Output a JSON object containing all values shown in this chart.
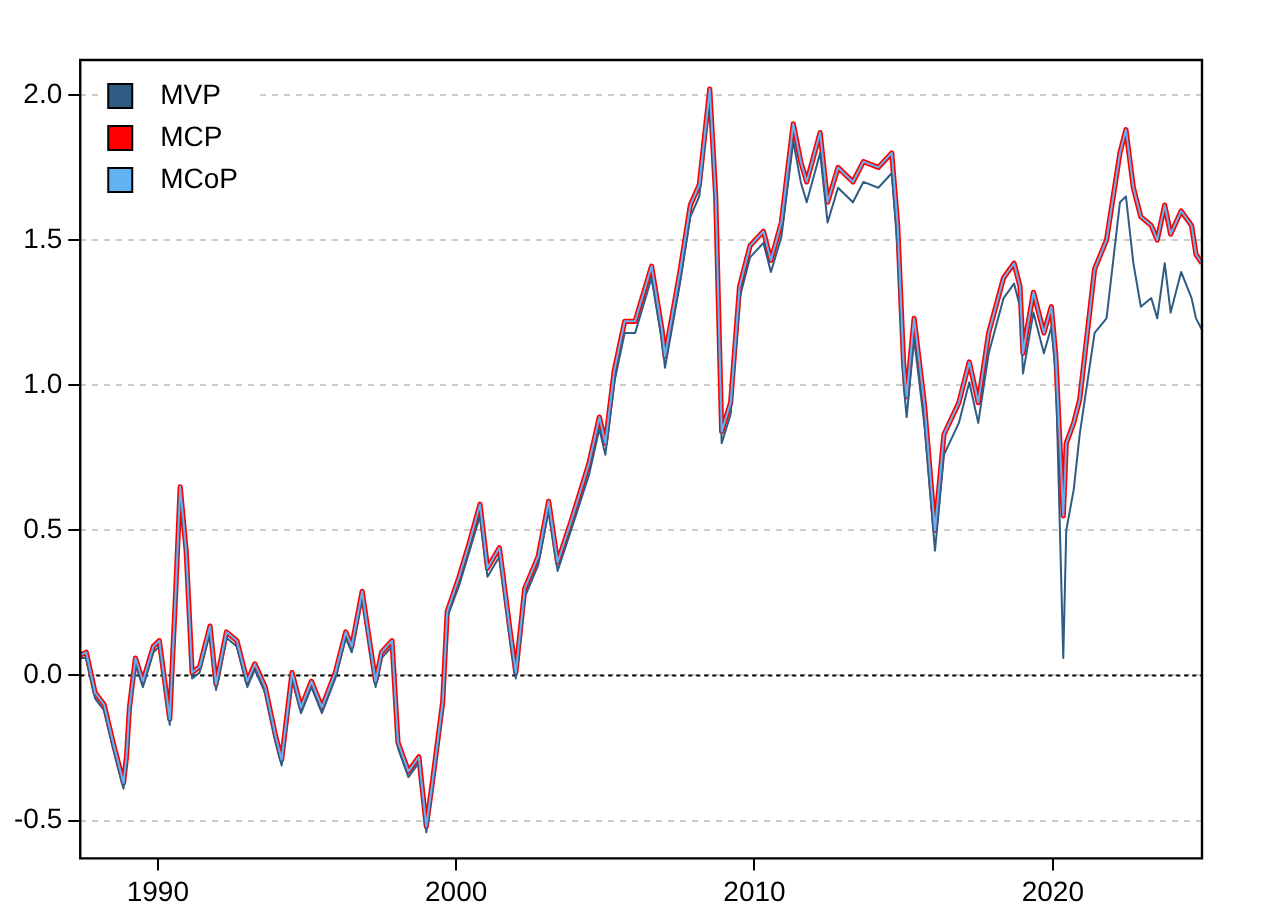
{
  "chart_data": {
    "type": "line",
    "xlim": [
      1987.4,
      2025
    ],
    "xticks": [
      1990,
      2000,
      2010,
      2020
    ],
    "ylim": [
      -0.63,
      2.12
    ],
    "yticks": [
      {
        "value": -0.5,
        "label": "-0.5"
      },
      {
        "value": 0,
        "label": "0.0"
      },
      {
        "value": 0.5,
        "label": "0.5"
      },
      {
        "value": 1,
        "label": "1.0"
      },
      {
        "value": 1.5,
        "label": "1.5"
      },
      {
        "value": 2,
        "label": "2.0"
      }
    ],
    "grid": "y",
    "legend": "top left",
    "marker": "none",
    "line_style": "solid",
    "ref_lines": [
      {
        "axis": "y",
        "value": 0,
        "color": "#000000",
        "line_style": "dotted"
      }
    ],
    "x": [
      1987.4,
      1987.6,
      1987.9,
      1988.2,
      1988.5,
      1988.85,
      1988.95,
      1989.05,
      1989.25,
      1989.5,
      1989.85,
      1990.05,
      1990.4,
      1990.6,
      1990.75,
      1990.95,
      1991.15,
      1991.4,
      1991.75,
      1991.95,
      1992.3,
      1992.65,
      1993.0,
      1993.25,
      1993.6,
      1993.95,
      1994.15,
      1994.5,
      1994.8,
      1995.15,
      1995.5,
      1995.95,
      1996.3,
      1996.5,
      1996.85,
      1997.05,
      1997.3,
      1997.5,
      1997.85,
      1998.05,
      1998.4,
      1998.75,
      1999.0,
      1999.2,
      1999.55,
      1999.7,
      2000.1,
      2000.45,
      2000.8,
      2001.05,
      2001.45,
      2001.8,
      2002.0,
      2002.3,
      2002.75,
      2003.1,
      2003.4,
      2003.85,
      2004.45,
      2004.8,
      2005.0,
      2005.3,
      2005.65,
      2006.0,
      2006.55,
      2006.9,
      2007.0,
      2007.5,
      2007.85,
      2008.15,
      2008.5,
      2008.7,
      2008.9,
      2009.2,
      2009.5,
      2009.85,
      2010.3,
      2010.55,
      2010.9,
      2011.3,
      2011.55,
      2011.75,
      2012.2,
      2012.45,
      2012.8,
      2013.3,
      2013.65,
      2014.15,
      2014.6,
      2014.8,
      2015.0,
      2015.1,
      2015.35,
      2015.7,
      2016.05,
      2016.35,
      2016.85,
      2017.2,
      2017.5,
      2017.85,
      2018.35,
      2018.7,
      2018.9,
      2019.0,
      2019.35,
      2019.7,
      2019.95,
      2020.1,
      2020.35,
      2020.45,
      2020.7,
      2020.9,
      2021.4,
      2021.8,
      2022.25,
      2022.45,
      2022.7,
      2022.95,
      2023.3,
      2023.5,
      2023.75,
      2023.95,
      2024.3,
      2024.65,
      2024.8,
      2025.0
    ],
    "series": [
      {
        "name": "MVP",
        "color": "#2f5c85",
        "values": [
          0.06,
          0.06,
          -0.08,
          -0.12,
          -0.25,
          -0.39,
          -0.3,
          -0.13,
          0.04,
          -0.04,
          0.08,
          0.1,
          -0.17,
          0.27,
          0.64,
          0.41,
          -0.01,
          0.01,
          0.15,
          -0.05,
          0.13,
          0.1,
          -0.04,
          0.02,
          -0.06,
          -0.23,
          -0.31,
          -0.01,
          -0.13,
          -0.04,
          -0.13,
          -0.01,
          0.13,
          0.08,
          0.27,
          0.13,
          -0.04,
          0.06,
          0.1,
          -0.25,
          -0.35,
          -0.3,
          -0.54,
          -0.39,
          -0.11,
          0.2,
          0.31,
          0.43,
          0.55,
          0.34,
          0.41,
          0.13,
          -0.01,
          0.27,
          0.38,
          0.57,
          0.36,
          0.5,
          0.69,
          0.85,
          0.76,
          1.01,
          1.18,
          1.18,
          1.37,
          1.15,
          1.06,
          1.35,
          1.58,
          1.65,
          2.0,
          1.61,
          0.8,
          0.9,
          1.3,
          1.44,
          1.49,
          1.39,
          1.51,
          1.84,
          1.7,
          1.63,
          1.8,
          1.56,
          1.68,
          1.63,
          1.7,
          1.68,
          1.73,
          1.47,
          1.0,
          0.89,
          1.16,
          0.86,
          0.43,
          0.76,
          0.87,
          1.01,
          0.87,
          1.11,
          1.3,
          1.35,
          1.27,
          1.04,
          1.25,
          1.11,
          1.2,
          1.04,
          0.06,
          0.5,
          0.64,
          0.83,
          1.18,
          1.23,
          1.63,
          1.65,
          1.42,
          1.27,
          1.3,
          1.23,
          1.42,
          1.25,
          1.39,
          1.3,
          1.23,
          1.19
        ]
      },
      {
        "name": "MCP",
        "color": "#ff0000",
        "values": [
          0.07,
          0.08,
          -0.06,
          -0.1,
          -0.23,
          -0.37,
          -0.28,
          -0.11,
          0.06,
          -0.02,
          0.1,
          0.12,
          -0.15,
          0.29,
          0.65,
          0.43,
          0.01,
          0.03,
          0.17,
          -0.03,
          0.15,
          0.12,
          -0.02,
          0.04,
          -0.04,
          -0.21,
          -0.29,
          0.01,
          -0.11,
          -0.02,
          -0.11,
          0.01,
          0.15,
          0.1,
          0.29,
          0.15,
          -0.02,
          0.08,
          0.12,
          -0.23,
          -0.33,
          -0.28,
          -0.52,
          -0.37,
          -0.09,
          0.22,
          0.34,
          0.46,
          0.59,
          0.37,
          0.44,
          0.16,
          0.01,
          0.3,
          0.41,
          0.6,
          0.39,
          0.53,
          0.73,
          0.89,
          0.8,
          1.05,
          1.22,
          1.22,
          1.41,
          1.19,
          1.1,
          1.39,
          1.62,
          1.69,
          2.02,
          1.65,
          0.84,
          0.94,
          1.34,
          1.48,
          1.53,
          1.43,
          1.56,
          1.9,
          1.77,
          1.7,
          1.87,
          1.63,
          1.75,
          1.7,
          1.77,
          1.75,
          1.8,
          1.55,
          1.07,
          0.96,
          1.23,
          0.93,
          0.5,
          0.83,
          0.94,
          1.08,
          0.94,
          1.18,
          1.37,
          1.42,
          1.34,
          1.11,
          1.32,
          1.18,
          1.27,
          1.1,
          0.55,
          0.8,
          0.87,
          0.95,
          1.4,
          1.5,
          1.8,
          1.88,
          1.68,
          1.58,
          1.55,
          1.5,
          1.62,
          1.52,
          1.6,
          1.55,
          1.45,
          1.42
        ]
      },
      {
        "name": "MCoP",
        "color": "#63b3f4",
        "values": [
          0.07,
          0.08,
          -0.06,
          -0.1,
          -0.23,
          -0.37,
          -0.28,
          -0.11,
          0.06,
          -0.02,
          0.1,
          0.12,
          -0.15,
          0.29,
          0.65,
          0.43,
          0.01,
          0.03,
          0.17,
          -0.03,
          0.15,
          0.12,
          -0.02,
          0.04,
          -0.04,
          -0.21,
          -0.29,
          0.01,
          -0.11,
          -0.02,
          -0.11,
          0.01,
          0.15,
          0.1,
          0.29,
          0.15,
          -0.02,
          0.08,
          0.12,
          -0.23,
          -0.33,
          -0.28,
          -0.52,
          -0.37,
          -0.09,
          0.22,
          0.34,
          0.46,
          0.59,
          0.37,
          0.44,
          0.16,
          0.01,
          0.3,
          0.41,
          0.6,
          0.39,
          0.53,
          0.73,
          0.89,
          0.8,
          1.05,
          1.22,
          1.22,
          1.41,
          1.19,
          1.1,
          1.39,
          1.62,
          1.69,
          2.02,
          1.65,
          0.84,
          0.94,
          1.34,
          1.48,
          1.53,
          1.43,
          1.56,
          1.9,
          1.77,
          1.7,
          1.87,
          1.63,
          1.75,
          1.7,
          1.77,
          1.75,
          1.8,
          1.55,
          1.07,
          0.96,
          1.23,
          0.93,
          0.5,
          0.83,
          0.94,
          1.08,
          0.94,
          1.18,
          1.37,
          1.42,
          1.34,
          1.11,
          1.32,
          1.18,
          1.27,
          1.1,
          0.55,
          0.8,
          0.87,
          0.95,
          1.4,
          1.5,
          1.8,
          1.88,
          1.68,
          1.58,
          1.55,
          1.5,
          1.62,
          1.52,
          1.6,
          1.55,
          1.45,
          1.42
        ]
      }
    ]
  }
}
